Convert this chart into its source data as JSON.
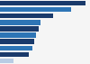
{
  "values": [
    100,
    83,
    62,
    47,
    45,
    42,
    40,
    38,
    34,
    16
  ],
  "colors": [
    "#1a3a6b",
    "#2e75b6",
    "#1a3a6b",
    "#2e75b6",
    "#1a3a6b",
    "#2e75b6",
    "#1a3a6b",
    "#2e75b6",
    "#1a3a6b",
    "#b8cce4"
  ],
  "background_color": "#f5f5f5",
  "bar_height": 0.75,
  "xlim": [
    0,
    105
  ],
  "n_bars": 10
}
